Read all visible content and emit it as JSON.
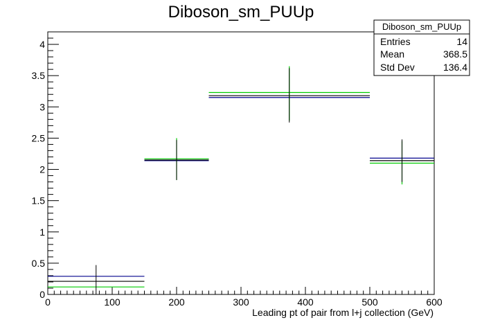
{
  "chart_data": {
    "type": "histogram",
    "title": "Diboson_sm_PUUp",
    "xlabel": "Leading pt of pair from l+j collection (GeV)",
    "ylabel": "",
    "xlim": [
      0,
      600
    ],
    "ylim": [
      0,
      4.2
    ],
    "x_ticks": [
      0,
      100,
      200,
      300,
      400,
      500,
      600
    ],
    "x_tick_labels": [
      "0",
      "100",
      "200",
      "300",
      "400",
      "500",
      "600"
    ],
    "y_ticks": [
      0,
      0.5,
      1,
      1.5,
      2,
      2.5,
      3,
      3.5,
      4
    ],
    "y_tick_labels": [
      "0",
      "0.5",
      "1",
      "1.5",
      "2",
      "2.5",
      "3",
      "3.5",
      "4"
    ],
    "grid": false,
    "bins": [
      {
        "x_low": 0,
        "x_high": 150,
        "center": 75,
        "value": 0.21,
        "err_low": 0.0,
        "err_high": 0.47
      },
      {
        "x_low": 150,
        "x_high": 250,
        "center": 200,
        "value": 2.15,
        "err_low": 1.83,
        "err_high": 2.47
      },
      {
        "x_low": 250,
        "x_high": 500,
        "center": 375,
        "value": 3.18,
        "err_low": 2.75,
        "err_high": 3.62
      },
      {
        "x_low": 500,
        "x_high": 600,
        "center": 550,
        "value": 2.14,
        "err_low": 1.8,
        "err_high": 2.48
      }
    ],
    "series": [
      {
        "name": "",
        "color": "#000000",
        "values": [
          0.21,
          2.15,
          3.18,
          2.14
        ]
      },
      {
        "name": "",
        "color": "#00008b",
        "values": [
          0.29,
          2.14,
          3.15,
          2.18
        ]
      },
      {
        "name": "",
        "color": "#00cc00",
        "values": [
          0.12,
          2.17,
          3.23,
          2.1
        ]
      }
    ],
    "green_error_ends": [
      {
        "center": 200,
        "err_low": 1.83,
        "err_high": 2.5
      },
      {
        "center": 375,
        "err_low": 2.78,
        "err_high": 3.65
      },
      {
        "center": 550,
        "err_low": 1.76,
        "err_high": 2.45
      }
    ],
    "stats_box": {
      "name": "Diboson_sm_PUUp",
      "rows": [
        {
          "label": "Entries",
          "value": "14"
        },
        {
          "label": "Mean",
          "value": "368.5"
        },
        {
          "label": "Std Dev",
          "value": "136.4"
        }
      ]
    }
  }
}
